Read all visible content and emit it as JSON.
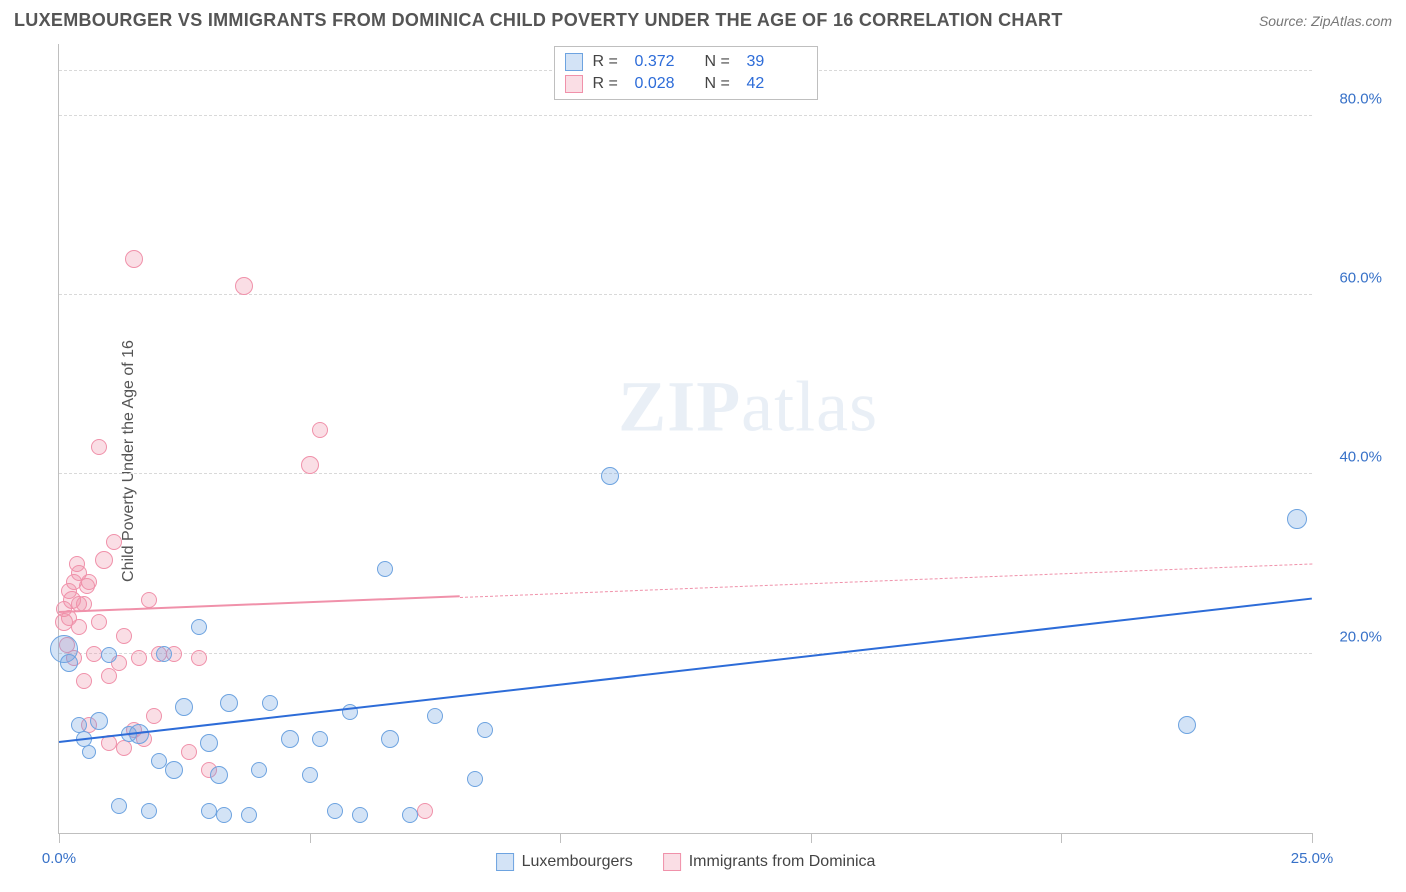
{
  "header": {
    "title": "LUXEMBOURGER VS IMMIGRANTS FROM DOMINICA CHILD POVERTY UNDER THE AGE OF 16 CORRELATION CHART",
    "source": "Source: ZipAtlas.com"
  },
  "chart": {
    "type": "scatter",
    "ylabel": "Child Poverty Under the Age of 16",
    "watermark_a": "ZIP",
    "watermark_b": "atlas",
    "background_color": "#ffffff",
    "grid_color": "#d9d9d9",
    "axis_color": "#bfbfbf",
    "xlim": [
      0,
      25
    ],
    "ylim": [
      0,
      88
    ],
    "xticks": [
      0,
      5,
      10,
      15,
      20,
      25
    ],
    "xtick_labels": [
      "0.0%",
      "",
      "",
      "",
      "",
      "25.0%"
    ],
    "yticks": [
      20,
      40,
      60,
      80
    ],
    "ytick_labels": [
      "20.0%",
      "40.0%",
      "60.0%",
      "80.0%"
    ],
    "series": [
      {
        "name": "Luxembourgers",
        "fill": "rgba(109,163,224,0.30)",
        "stroke": "#6da3e0",
        "r_label": "R =",
        "r_value": "0.372",
        "n_label": "N =",
        "n_value": "39",
        "trend": {
          "y_at_x0": 10.0,
          "y_at_xmax": 26.0,
          "solid_until_x": 25.0,
          "color": "#2d6cd8"
        },
        "points": [
          {
            "x": 0.1,
            "y": 20.5,
            "r": 14
          },
          {
            "x": 0.2,
            "y": 19.0,
            "r": 9
          },
          {
            "x": 0.4,
            "y": 12.0,
            "r": 8
          },
          {
            "x": 0.5,
            "y": 10.5,
            "r": 8
          },
          {
            "x": 0.6,
            "y": 9.0,
            "r": 7
          },
          {
            "x": 0.8,
            "y": 12.5,
            "r": 9
          },
          {
            "x": 1.0,
            "y": 19.8,
            "r": 8
          },
          {
            "x": 1.2,
            "y": 3.0,
            "r": 8
          },
          {
            "x": 1.4,
            "y": 11.0,
            "r": 8
          },
          {
            "x": 1.6,
            "y": 11.0,
            "r": 10
          },
          {
            "x": 1.8,
            "y": 2.5,
            "r": 8
          },
          {
            "x": 2.0,
            "y": 8.0,
            "r": 8
          },
          {
            "x": 2.1,
            "y": 20.0,
            "r": 8
          },
          {
            "x": 2.3,
            "y": 7.0,
            "r": 9
          },
          {
            "x": 2.5,
            "y": 14.0,
            "r": 9
          },
          {
            "x": 2.8,
            "y": 23.0,
            "r": 8
          },
          {
            "x": 3.0,
            "y": 2.5,
            "r": 8
          },
          {
            "x": 3.0,
            "y": 10.0,
            "r": 9
          },
          {
            "x": 3.2,
            "y": 6.5,
            "r": 9
          },
          {
            "x": 3.3,
            "y": 2.0,
            "r": 8
          },
          {
            "x": 3.4,
            "y": 14.5,
            "r": 9
          },
          {
            "x": 3.8,
            "y": 2.0,
            "r": 8
          },
          {
            "x": 4.0,
            "y": 7.0,
            "r": 8
          },
          {
            "x": 4.2,
            "y": 14.5,
            "r": 8
          },
          {
            "x": 4.6,
            "y": 10.5,
            "r": 9
          },
          {
            "x": 5.0,
            "y": 6.5,
            "r": 8
          },
          {
            "x": 5.2,
            "y": 10.5,
            "r": 8
          },
          {
            "x": 5.5,
            "y": 2.5,
            "r": 8
          },
          {
            "x": 5.8,
            "y": 13.5,
            "r": 8
          },
          {
            "x": 6.0,
            "y": 2.0,
            "r": 8
          },
          {
            "x": 6.5,
            "y": 29.5,
            "r": 8
          },
          {
            "x": 6.6,
            "y": 10.5,
            "r": 9
          },
          {
            "x": 7.0,
            "y": 2.0,
            "r": 8
          },
          {
            "x": 7.5,
            "y": 13.0,
            "r": 8
          },
          {
            "x": 8.3,
            "y": 6.0,
            "r": 8
          },
          {
            "x": 8.5,
            "y": 11.5,
            "r": 8
          },
          {
            "x": 11.0,
            "y": 39.8,
            "r": 9
          },
          {
            "x": 22.5,
            "y": 12.0,
            "r": 9
          },
          {
            "x": 24.7,
            "y": 35.0,
            "r": 10
          }
        ]
      },
      {
        "name": "Immigrants from Dominica",
        "fill": "rgba(240,145,170,0.30)",
        "stroke": "#f091aa",
        "r_label": "R =",
        "r_value": "0.028",
        "n_label": "N =",
        "n_value": "42",
        "trend": {
          "y_at_x0": 24.5,
          "y_at_xmax": 30.0,
          "solid_until_x": 8.0,
          "color": "#f091aa"
        },
        "points": [
          {
            "x": 0.1,
            "y": 23.5,
            "r": 9
          },
          {
            "x": 0.1,
            "y": 25.0,
            "r": 8
          },
          {
            "x": 0.15,
            "y": 21.0,
            "r": 8
          },
          {
            "x": 0.2,
            "y": 24.0,
            "r": 8
          },
          {
            "x": 0.2,
            "y": 27.0,
            "r": 8
          },
          {
            "x": 0.25,
            "y": 26.0,
            "r": 9
          },
          {
            "x": 0.3,
            "y": 28.0,
            "r": 8
          },
          {
            "x": 0.3,
            "y": 19.5,
            "r": 8
          },
          {
            "x": 0.35,
            "y": 30.0,
            "r": 8
          },
          {
            "x": 0.4,
            "y": 25.5,
            "r": 8
          },
          {
            "x": 0.4,
            "y": 23.0,
            "r": 8
          },
          {
            "x": 0.4,
            "y": 29.0,
            "r": 8
          },
          {
            "x": 0.5,
            "y": 25.5,
            "r": 8
          },
          {
            "x": 0.5,
            "y": 17.0,
            "r": 8
          },
          {
            "x": 0.55,
            "y": 27.5,
            "r": 8
          },
          {
            "x": 0.6,
            "y": 28.0,
            "r": 8
          },
          {
            "x": 0.6,
            "y": 12.0,
            "r": 8
          },
          {
            "x": 0.7,
            "y": 20.0,
            "r": 8
          },
          {
            "x": 0.8,
            "y": 23.5,
            "r": 8
          },
          {
            "x": 0.8,
            "y": 43.0,
            "r": 8
          },
          {
            "x": 0.9,
            "y": 30.5,
            "r": 9
          },
          {
            "x": 1.0,
            "y": 17.5,
            "r": 8
          },
          {
            "x": 1.0,
            "y": 10.0,
            "r": 8
          },
          {
            "x": 1.1,
            "y": 32.5,
            "r": 8
          },
          {
            "x": 1.2,
            "y": 19.0,
            "r": 8
          },
          {
            "x": 1.3,
            "y": 9.5,
            "r": 8
          },
          {
            "x": 1.3,
            "y": 22.0,
            "r": 8
          },
          {
            "x": 1.5,
            "y": 64.0,
            "r": 9
          },
          {
            "x": 1.5,
            "y": 11.5,
            "r": 8
          },
          {
            "x": 1.6,
            "y": 19.5,
            "r": 8
          },
          {
            "x": 1.7,
            "y": 10.5,
            "r": 8
          },
          {
            "x": 1.8,
            "y": 26.0,
            "r": 8
          },
          {
            "x": 1.9,
            "y": 13.0,
            "r": 8
          },
          {
            "x": 2.0,
            "y": 20.0,
            "r": 8
          },
          {
            "x": 2.3,
            "y": 20.0,
            "r": 8
          },
          {
            "x": 2.6,
            "y": 9.0,
            "r": 8
          },
          {
            "x": 2.8,
            "y": 19.5,
            "r": 8
          },
          {
            "x": 3.0,
            "y": 7.0,
            "r": 8
          },
          {
            "x": 3.7,
            "y": 61.0,
            "r": 9
          },
          {
            "x": 5.0,
            "y": 41.0,
            "r": 9
          },
          {
            "x": 5.2,
            "y": 45.0,
            "r": 8
          },
          {
            "x": 7.3,
            "y": 2.5,
            "r": 8
          }
        ]
      }
    ]
  }
}
